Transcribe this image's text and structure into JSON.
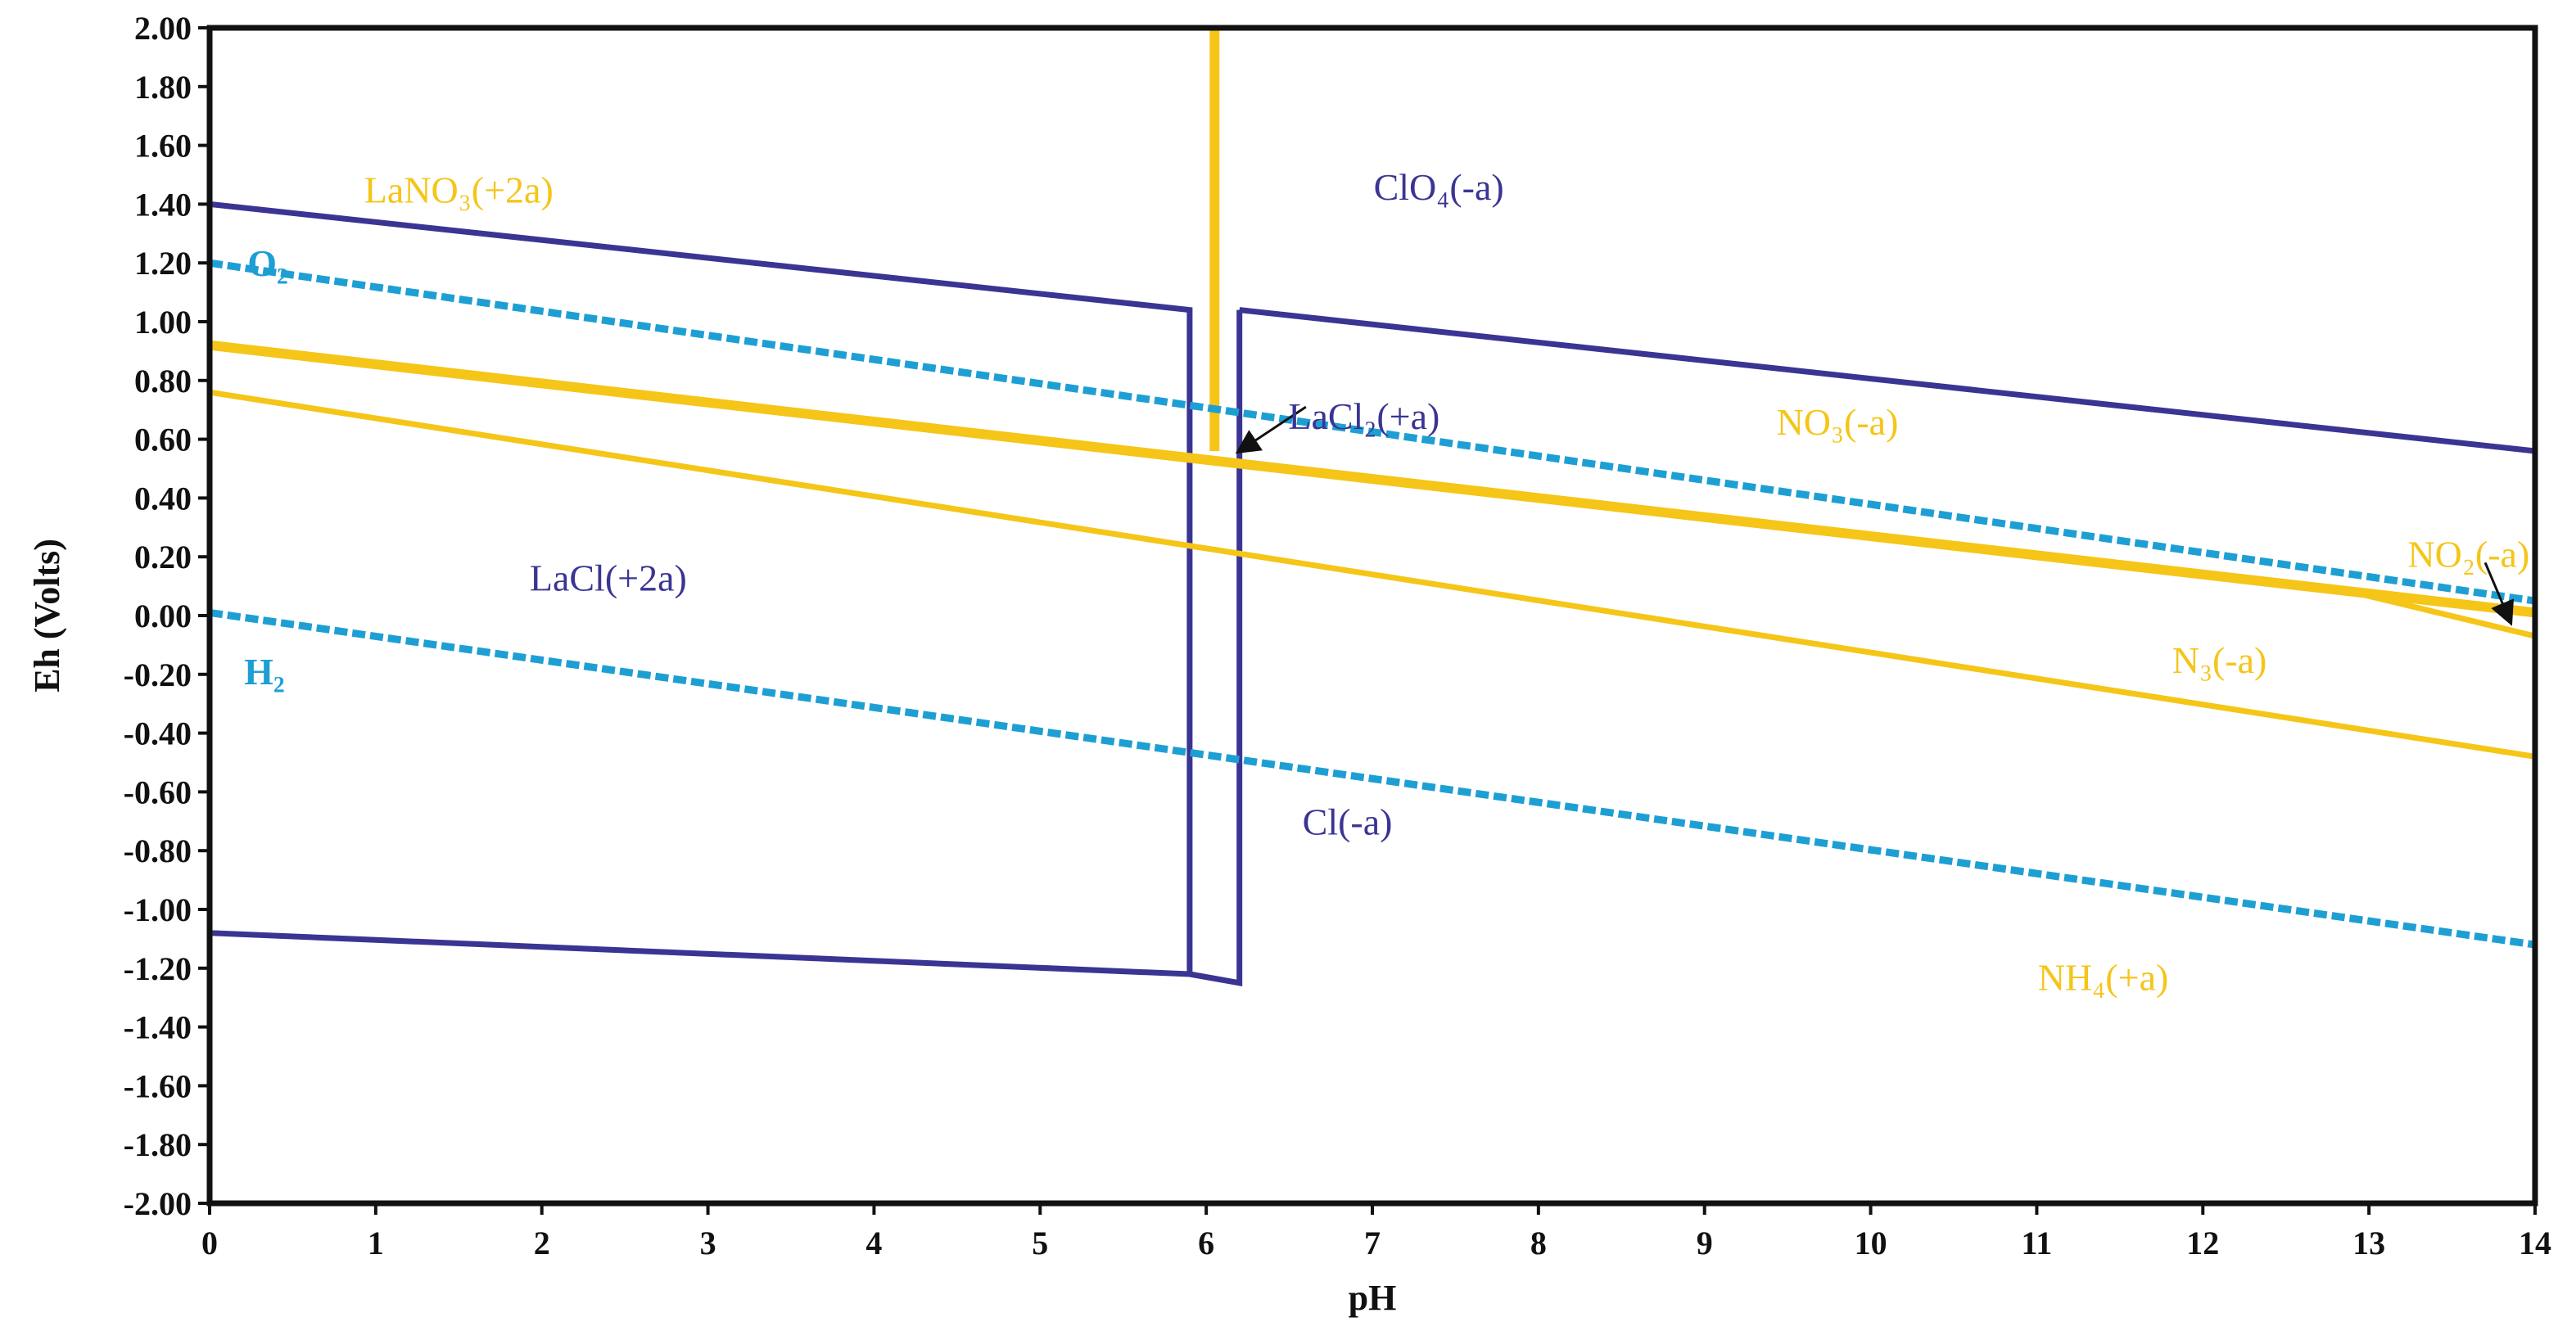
{
  "chart_data": {
    "type": "line",
    "title": "",
    "xlabel": "pH",
    "ylabel": "Eh (Volts)",
    "xlim": [
      0,
      14
    ],
    "ylim": [
      -2.0,
      2.0
    ],
    "x_ticks": [
      "0",
      "1",
      "2",
      "3",
      "4",
      "5",
      "6",
      "7",
      "8",
      "9",
      "10",
      "11",
      "12",
      "13",
      "14"
    ],
    "y_ticks": [
      "2.00",
      "1.80",
      "1.60",
      "1.40",
      "1.20",
      "1.00",
      "0.80",
      "0.60",
      "0.40",
      "0.20",
      "0.00",
      "-0.20",
      "-0.40",
      "-0.60",
      "-0.80",
      "-1.00",
      "-1.20",
      "-1.40",
      "-1.60",
      "-1.80",
      "-2.00"
    ],
    "grid": false,
    "colors": {
      "lanthanum": "#3a3593",
      "nitrogen": "#f5c518",
      "water": "#1e9fd4",
      "frame": "#111111"
    },
    "series": [
      {
        "group": "lanthanum",
        "style": "solid",
        "points": [
          [
            0,
            1.4
          ],
          [
            5.9,
            1.04
          ],
          [
            5.9,
            -1.22
          ],
          [
            0,
            -1.08
          ],
          [
            0,
            1.4
          ]
        ]
      },
      {
        "group": "lanthanum",
        "style": "solid",
        "points": [
          [
            6.2,
            1.04
          ],
          [
            14,
            0.56
          ]
        ]
      },
      {
        "group": "lanthanum",
        "style": "solid",
        "points": [
          [
            6.2,
            1.04
          ],
          [
            6.2,
            -1.25
          ],
          [
            5.9,
            -1.22
          ]
        ]
      },
      {
        "group": "nitrogen",
        "style": "thick",
        "points": [
          [
            0,
            0.92
          ],
          [
            14,
            0.01
          ]
        ]
      },
      {
        "group": "nitrogen",
        "style": "solid",
        "points": [
          [
            0,
            0.76
          ],
          [
            14,
            -0.48
          ]
        ]
      },
      {
        "group": "nitrogen",
        "style": "thick",
        "points": [
          [
            6.05,
            2.0
          ],
          [
            6.05,
            0.56
          ]
        ]
      },
      {
        "group": "nitrogen",
        "style": "solid",
        "points": [
          [
            12.9,
            0.08
          ],
          [
            14,
            -0.07
          ]
        ]
      },
      {
        "group": "water",
        "style": "dashed",
        "points": [
          [
            0,
            1.2
          ],
          [
            14,
            0.05
          ]
        ]
      },
      {
        "group": "water",
        "style": "dashed",
        "points": [
          [
            0,
            0.01
          ],
          [
            14,
            -1.12
          ]
        ]
      }
    ],
    "annotations": [
      {
        "text": "LaNO₃(+2a)",
        "group": "nitrogen",
        "x": 1.5,
        "y": 1.45
      },
      {
        "text": "ClO₄(-a)",
        "group": "lanthanum",
        "x": 7.4,
        "y": 1.46
      },
      {
        "text": "O₂",
        "group": "water",
        "x": 0.35,
        "y": 1.2
      },
      {
        "text": "LaCl₂(+a)",
        "group": "lanthanum",
        "x": 6.95,
        "y": 0.68
      },
      {
        "text": "NO₃(-a)",
        "group": "nitrogen",
        "x": 9.8,
        "y": 0.66
      },
      {
        "text": "NO₂(-a)",
        "group": "nitrogen",
        "x": 13.6,
        "y": 0.21
      },
      {
        "text": "LaCl(+2a)",
        "group": "lanthanum",
        "x": 2.4,
        "y": 0.13
      },
      {
        "text": "N₃(-a)",
        "group": "nitrogen",
        "x": 12.1,
        "y": -0.15
      },
      {
        "text": "H₂",
        "group": "water",
        "x": 0.33,
        "y": -0.19
      },
      {
        "text": "Cl(-a)",
        "group": "lanthanum",
        "x": 6.85,
        "y": -0.7
      },
      {
        "text": "NH₄(+a)",
        "group": "nitrogen",
        "x": 11.4,
        "y": -1.23
      }
    ],
    "arrows": [
      {
        "from": [
          6.6,
          0.71
        ],
        "to": [
          6.2,
          0.56
        ]
      },
      {
        "from": [
          13.7,
          0.18
        ],
        "to": [
          13.85,
          -0.02
        ]
      }
    ]
  }
}
